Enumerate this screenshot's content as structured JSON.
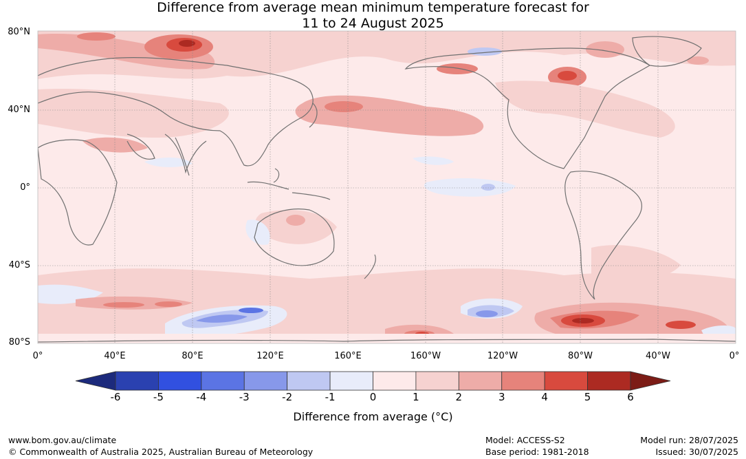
{
  "title": {
    "line1": "Difference from average mean minimum temperature forecast for",
    "line2": "11 to 24 August 2025"
  },
  "map": {
    "lat_labels": [
      "80°N",
      "40°N",
      "0°",
      "40°S",
      "80°S"
    ],
    "lon_labels": [
      "0°",
      "40°E",
      "80°E",
      "120°E",
      "160°E",
      "160°W",
      "120°W",
      "80°W",
      "40°W",
      "0°"
    ]
  },
  "colorbar": {
    "ticks": [
      "-6",
      "-5",
      "-4",
      "-3",
      "-2",
      "-1",
      "0",
      "1",
      "2",
      "3",
      "4",
      "5",
      "6"
    ],
    "colors": [
      "#1c2a7c",
      "#2a41b0",
      "#3150e0",
      "#5b74e4",
      "#8798ea",
      "#bfc8f2",
      "#e8ecfa",
      "#fdeaea",
      "#f6d2d0",
      "#eeaca8",
      "#e6837b",
      "#d84a3e",
      "#ac2a22",
      "#7c1c16"
    ],
    "label": "Difference from average (°C)"
  },
  "footer": {
    "website": "www.bom.gov.au/climate",
    "copyright": "© Commonwealth of Australia 2025, Australian Bureau of Meteorology",
    "model": "Model: ACCESS-S2",
    "base_period": "Base period: 1981-2018",
    "model_run": "Model run: 28/07/2025",
    "issued": "Issued: 30/07/2025"
  }
}
